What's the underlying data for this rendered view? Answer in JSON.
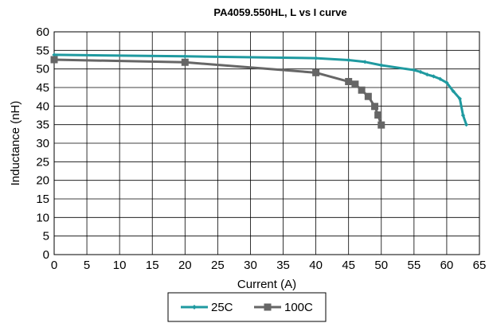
{
  "chart_data": {
    "type": "line",
    "title": "PA4059.550HL,  L vs I curve",
    "xlabel": "Current (A)",
    "ylabel": "Inductance (nH)",
    "xlim": [
      0,
      65
    ],
    "ylim": [
      0,
      60
    ],
    "xticks": [
      0,
      5,
      10,
      15,
      20,
      25,
      30,
      35,
      40,
      45,
      50,
      55,
      60,
      65
    ],
    "yticks": [
      0,
      5,
      10,
      15,
      20,
      25,
      30,
      35,
      40,
      45,
      50,
      55,
      60
    ],
    "grid": true,
    "legend_position": "bottom",
    "series": [
      {
        "name": "25C",
        "color": "#1f9aa0",
        "marker": "diamond",
        "x": [
          0,
          20,
          40,
          45,
          47.5,
          50,
          55,
          56,
          57,
          58,
          59,
          60,
          61,
          62,
          62.5,
          63
        ],
        "y": [
          53.8,
          53.4,
          52.9,
          52.4,
          51.9,
          51.0,
          49.7,
          49.2,
          48.5,
          48.0,
          47.3,
          46.3,
          44.0,
          42.0,
          37.5,
          35.0
        ]
      },
      {
        "name": "100C",
        "color": "#666666",
        "marker": "square",
        "x": [
          0,
          20,
          40,
          45,
          46,
          47,
          48,
          49,
          49.5,
          50
        ],
        "y": [
          52.5,
          51.8,
          49.0,
          46.6,
          45.9,
          44.3,
          42.6,
          39.9,
          37.6,
          34.9
        ]
      }
    ]
  }
}
